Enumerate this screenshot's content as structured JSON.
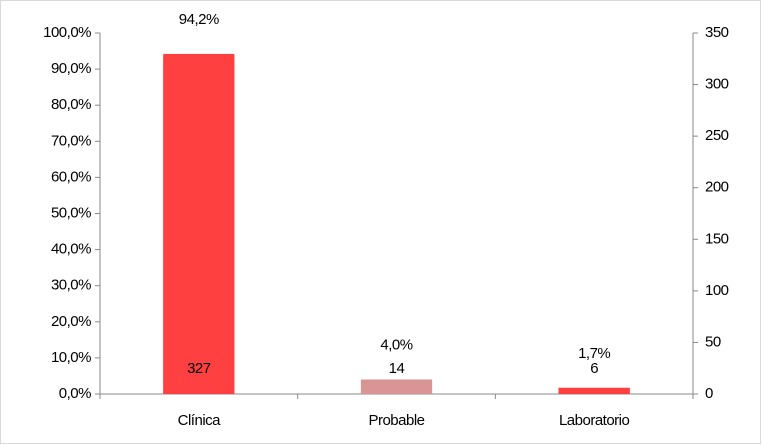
{
  "chart_data": {
    "type": "bar",
    "categories": [
      "Clínica",
      "Probable",
      "Laboratorio"
    ],
    "series": [
      {
        "values": [
          94.2,
          4.0,
          1.7
        ],
        "value_labels": [
          "94,2%",
          "4,0%",
          "1,7%"
        ],
        "colors": [
          "#ff4040",
          "#d99594",
          "#ff4040"
        ]
      },
      {
        "axis": "y2",
        "values": [
          327,
          14,
          6
        ],
        "colors": [
          "#ff4040",
          "#d99594",
          "#ff4040"
        ]
      }
    ],
    "ylim": [
      0,
      100
    ],
    "yticks": [
      {
        "value": 0,
        "label": "0,0%"
      },
      {
        "value": 10,
        "label": "10,0%"
      },
      {
        "value": 20,
        "label": "20,0%"
      },
      {
        "value": 30,
        "label": "30,0%"
      },
      {
        "value": 40,
        "label": "40,0%"
      },
      {
        "value": 50,
        "label": "50,0%"
      },
      {
        "value": 60,
        "label": "60,0%"
      },
      {
        "value": 70,
        "label": "70,0%"
      },
      {
        "value": 80,
        "label": "80,0%"
      },
      {
        "value": 90,
        "label": "90,0%"
      },
      {
        "value": 100,
        "label": "100,0%"
      }
    ],
    "y2lim": [
      0,
      350
    ],
    "y2ticks": [
      0,
      50,
      100,
      150,
      200,
      250,
      300,
      350
    ],
    "grid": false
  }
}
